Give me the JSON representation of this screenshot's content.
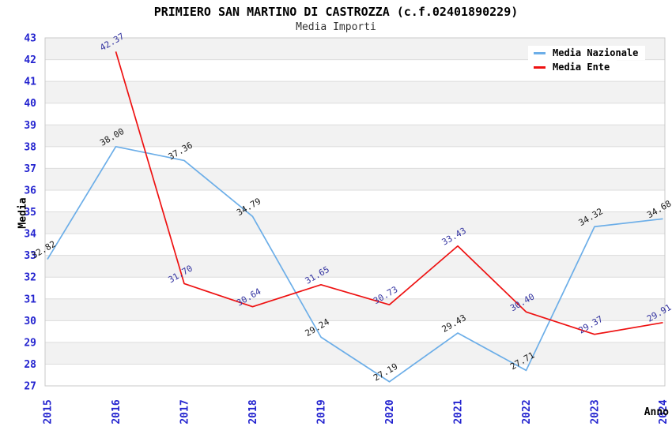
{
  "chart_data": {
    "type": "line",
    "title": "PRIMIERO SAN MARTINO DI CASTROZZA (c.f.02401890229)",
    "subtitle": "Media Importi",
    "xlabel": "Anno",
    "ylabel": "Media",
    "ylim": [
      27,
      43
    ],
    "ytick_step": 1,
    "grid": "horizontal gridlines with alternating shaded bands",
    "legend_position": "top-right",
    "categories": [
      2015,
      2016,
      2017,
      2018,
      2019,
      2020,
      2021,
      2022,
      2023,
      2024
    ],
    "series": [
      {
        "name": "Media Nazionale",
        "color": "#6caee8",
        "label_color": "#1a1a1a",
        "x": [
          2015,
          2016,
          2017,
          2018,
          2019,
          2020,
          2021,
          2022,
          2023,
          2024
        ],
        "values": [
          32.82,
          38.0,
          37.36,
          34.79,
          29.24,
          27.19,
          29.43,
          27.71,
          34.32,
          34.68
        ]
      },
      {
        "name": "Media Ente",
        "color": "#ee1111",
        "label_color": "#3333a0",
        "x": [
          2016,
          2017,
          2018,
          2019,
          2020,
          2021,
          2022,
          2023,
          2024
        ],
        "values": [
          42.37,
          31.7,
          30.64,
          31.65,
          30.73,
          33.43,
          30.4,
          29.37,
          29.91
        ]
      }
    ],
    "colors": {
      "axis_tick": "#2323cf",
      "band": "#f2f2f2",
      "gridline": "#dcdcdc",
      "plot_border": "#c9c9c9",
      "title": "#000000",
      "subtitle": "#333333"
    }
  }
}
